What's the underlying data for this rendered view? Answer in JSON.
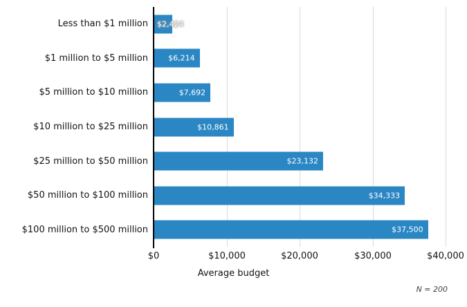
{
  "chart_data": {
    "type": "bar",
    "orientation": "horizontal",
    "title": "",
    "categories": [
      "Less than $1 million",
      "$1 million to $5 million",
      "$5 million to $10 million",
      "$10 million to $25 million",
      "$25 million to $50 million",
      "$50 million to $100 million",
      "$100 million to $500 million"
    ],
    "values": [
      2424,
      6214,
      7692,
      10861,
      23132,
      34333,
      37500
    ],
    "value_labels": [
      "$2,424",
      "$6,214",
      "$7,692",
      "$10,861",
      "$23,132",
      "$34,333",
      "$37,500"
    ],
    "xlabel": "Average budget",
    "ylabel": "",
    "xlim": [
      0,
      40000
    ],
    "x_ticks": [
      {
        "value": 0,
        "label": "$0"
      },
      {
        "value": 10000,
        "label": "$10,000"
      },
      {
        "value": 20000,
        "label": "$20,000"
      },
      {
        "value": 30000,
        "label": "$30,000"
      },
      {
        "value": 40000,
        "label": "$40,000"
      }
    ],
    "note": "N = 200",
    "legend": "none",
    "grid": "vertical-gridlines-only",
    "colors": {
      "bar": "#2b87c4",
      "gridline": "#d9d9d9",
      "axis_line": "#000000",
      "value_label_text": "#ffffff",
      "label_text": "#111111",
      "note_text": "#3c4049"
    }
  }
}
